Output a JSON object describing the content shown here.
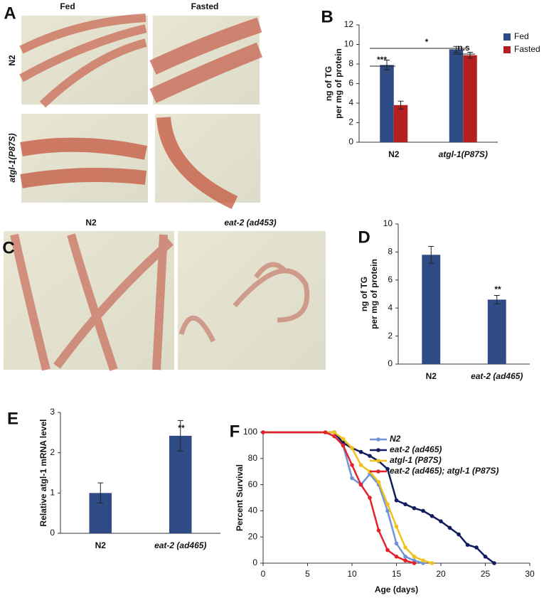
{
  "panels": {
    "A": {
      "letter": "A",
      "columns": [
        "Fed",
        "Fasted"
      ],
      "rows": [
        "N2",
        "atgl-1(P87S)"
      ]
    },
    "C": {
      "letter": "C",
      "columns": [
        "N2",
        "eat-2 (ad453)"
      ]
    }
  },
  "chart_data": [
    {
      "type": "bar",
      "panel": "B",
      "y_label": [
        "ng of TG",
        "per mg of protein"
      ],
      "categories": [
        "N2",
        "atgl-1(P87S)"
      ],
      "series": [
        {
          "name": "Fed",
          "color": "#2f4b86",
          "values": [
            7.9,
            9.5
          ],
          "errors": [
            0.5,
            0.3
          ]
        },
        {
          "name": "Fasted",
          "color": "#b3201f",
          "values": [
            3.8,
            8.9
          ],
          "errors": [
            0.4,
            0.3
          ]
        }
      ],
      "annotations": [
        "*",
        "***",
        "n.s"
      ],
      "ylim": [
        0,
        12
      ],
      "yticks": [
        0,
        2,
        4,
        6,
        8,
        10,
        12
      ],
      "legend": "top-right"
    },
    {
      "type": "bar",
      "panel": "D",
      "y_label": [
        "ng of TG",
        "per mg of protein"
      ],
      "categories": [
        "N2",
        "eat-2 (ad465)"
      ],
      "color": "#2f4b86",
      "values": [
        7.8,
        4.6
      ],
      "errors": [
        0.6,
        0.3
      ],
      "annotations": [
        "**"
      ],
      "ylim": [
        0,
        10
      ],
      "yticks": [
        0,
        2,
        4,
        6,
        8,
        10
      ]
    },
    {
      "type": "bar",
      "panel": "E",
      "y_label": [
        "Relative atgl-1 mRNA level"
      ],
      "categories": [
        "N2",
        "eat-2 (ad465)"
      ],
      "color": "#2f4b86",
      "values": [
        1.0,
        2.42
      ],
      "errors": [
        0.25,
        0.38
      ],
      "annotations": [
        "**"
      ],
      "ylim": [
        0,
        3
      ],
      "yticks": [
        0,
        1,
        2,
        3
      ]
    },
    {
      "type": "line",
      "panel": "F",
      "x_label": "Age (days)",
      "y_label": [
        "Percent Survival"
      ],
      "series": [
        {
          "name": "N2",
          "color": "#6f94d8",
          "x": [
            0,
            8,
            9,
            10,
            11,
            12,
            13,
            14,
            15,
            16,
            17,
            18
          ],
          "values": [
            100,
            100,
            90,
            65,
            60,
            68,
            60,
            40,
            15,
            5,
            2,
            0
          ]
        },
        {
          "name": "eat-2 (ad465)",
          "color": "#111b5e",
          "x": [
            0,
            8,
            9,
            10,
            11,
            12,
            13,
            14,
            15,
            16,
            17,
            18,
            19,
            20,
            21,
            22,
            23,
            24,
            25,
            26
          ],
          "values": [
            100,
            100,
            92,
            88,
            85,
            82,
            78,
            72,
            48,
            45,
            42,
            40,
            36,
            32,
            27,
            22,
            14,
            12,
            5,
            0
          ]
        },
        {
          "name": "atgl-1 (P87S)",
          "color": "#f2c01c",
          "x": [
            0,
            8,
            9,
            10,
            11,
            12,
            13,
            14,
            15,
            16,
            17,
            18,
            19
          ],
          "values": [
            100,
            100,
            95,
            88,
            75,
            70,
            62,
            45,
            28,
            12,
            5,
            2,
            0
          ]
        },
        {
          "name": "eat-2 (ad465); atgl-1 (P87S)",
          "color": "#e3222b",
          "x": [
            0,
            7,
            8,
            9,
            10,
            11,
            12,
            13,
            14,
            15,
            16,
            17
          ],
          "values": [
            100,
            100,
            97,
            90,
            75,
            60,
            50,
            25,
            10,
            5,
            2,
            0
          ]
        }
      ],
      "xlim": [
        0,
        30
      ],
      "xticks": [
        0,
        5,
        10,
        15,
        20,
        25,
        30
      ],
      "ylim": [
        0,
        100
      ],
      "yticks": [
        0,
        20,
        40,
        60,
        80,
        100
      ],
      "legend": "top-right"
    }
  ]
}
